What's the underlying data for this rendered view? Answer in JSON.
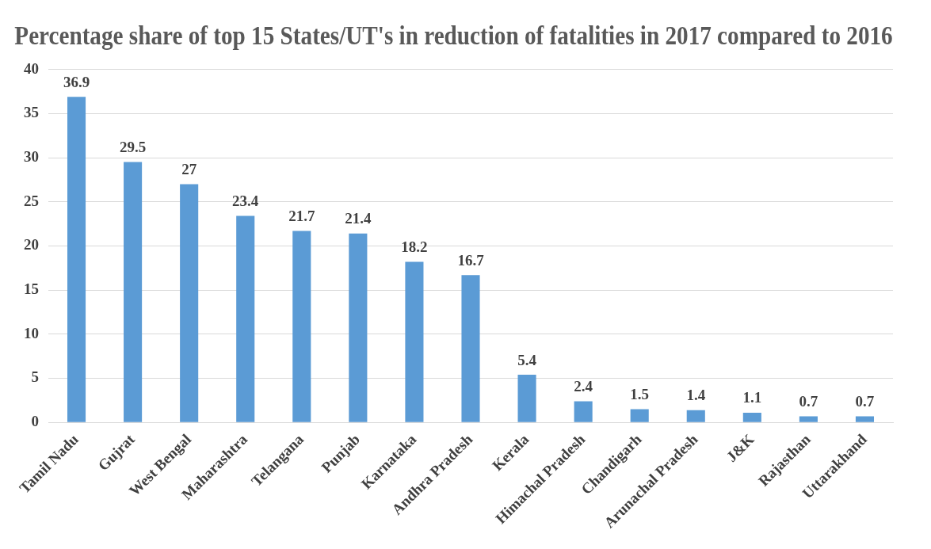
{
  "chart_data": {
    "type": "bar",
    "title": "Percentage share of top 15 States/UT's in reduction of fatalities in 2017 compared to 2016",
    "categories": [
      "Tamil Nadu",
      "Gujrat",
      "West Bengal",
      "Maharashtra",
      "Telangana",
      "Punjab",
      "Karnataka",
      "Andhra Pradesh",
      "Kerala",
      "Himachal Pradesh",
      "Chandigarh",
      "Arunachal Pradesh",
      "J&K",
      "Rajasthan",
      "Uttarakhand"
    ],
    "values": [
      36.9,
      29.5,
      27,
      23.4,
      21.7,
      21.4,
      18.2,
      16.7,
      5.4,
      2.4,
      1.5,
      1.4,
      1.1,
      0.7,
      0.7
    ],
    "color": "#5b9bd5",
    "ylim": [
      0,
      40
    ],
    "yticks": [
      0,
      5,
      10,
      15,
      20,
      25,
      30,
      35,
      40
    ],
    "grid": "y",
    "data_labels": true,
    "legend": false
  }
}
